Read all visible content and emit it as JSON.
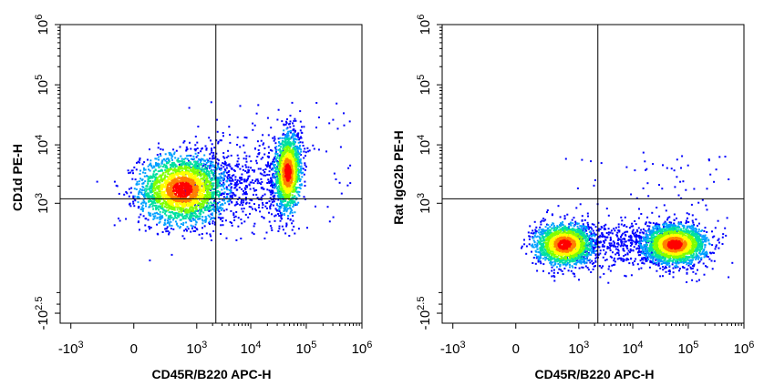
{
  "chart_data": [
    {
      "type": "scatter",
      "xlabel": "CD45R/B220 APC-H",
      "ylabel": "CD1d PE-H",
      "x_scale": "biexponential",
      "y_scale": "biexponential",
      "x_ticks": [
        {
          "base": "-10",
          "exp": "3",
          "value": -1000
        },
        {
          "base": "0",
          "exp": "",
          "value": 0
        },
        {
          "base": "10",
          "exp": "3",
          "value": 1000
        },
        {
          "base": "10",
          "exp": "4",
          "value": 10000
        },
        {
          "base": "10",
          "exp": "5",
          "value": 100000
        },
        {
          "base": "10",
          "exp": "6",
          "value": 1000000
        }
      ],
      "y_ticks": [
        {
          "base": "-10",
          "exp": "2.5",
          "value": -316
        },
        {
          "base": "10",
          "exp": "3",
          "value": 1000
        },
        {
          "base": "10",
          "exp": "4",
          "value": 10000
        },
        {
          "base": "10",
          "exp": "5",
          "value": 100000
        },
        {
          "base": "10",
          "exp": "6",
          "value": 1000000
        }
      ],
      "quadrant_gate": {
        "x": 2300,
        "y": 1200
      },
      "populations": [
        {
          "name": "",
          "center_x": 500,
          "center_y": 1800,
          "density": "high"
        },
        {
          "name": "",
          "center_x": 45000,
          "center_y": 3500,
          "density": "high"
        }
      ],
      "grid": false,
      "legend": "none"
    },
    {
      "type": "scatter",
      "xlabel": "CD45R/B220 APC-H",
      "ylabel": "Rat IgG2b PE-H",
      "x_scale": "biexponential",
      "y_scale": "biexponential",
      "x_ticks": [
        {
          "base": "-10",
          "exp": "3",
          "value": -1000
        },
        {
          "base": "0",
          "exp": "",
          "value": 0
        },
        {
          "base": "10",
          "exp": "3",
          "value": 1000
        },
        {
          "base": "10",
          "exp": "4",
          "value": 10000
        },
        {
          "base": "10",
          "exp": "5",
          "value": 100000
        },
        {
          "base": "10",
          "exp": "6",
          "value": 1000000
        }
      ],
      "y_ticks": [
        {
          "base": "-10",
          "exp": "2.5",
          "value": -316
        },
        {
          "base": "10",
          "exp": "3",
          "value": 1000
        },
        {
          "base": "10",
          "exp": "4",
          "value": 10000
        },
        {
          "base": "10",
          "exp": "5",
          "value": 100000
        },
        {
          "base": "10",
          "exp": "6",
          "value": 1000000
        }
      ],
      "quadrant_gate": {
        "x": 2300,
        "y": 1200
      },
      "populations": [
        {
          "name": "",
          "center_x": 500,
          "center_y": 150,
          "density": "high"
        },
        {
          "name": "",
          "center_x": 55000,
          "center_y": 150,
          "density": "high"
        }
      ],
      "grid": false,
      "legend": "none"
    }
  ],
  "colors": {
    "density_scale": [
      "#0000ff",
      "#00a0ff",
      "#00e0a0",
      "#80ff00",
      "#ffff00",
      "#ff8000",
      "#ff0000"
    ],
    "axis": "#000000",
    "gate_line": "#000000"
  }
}
